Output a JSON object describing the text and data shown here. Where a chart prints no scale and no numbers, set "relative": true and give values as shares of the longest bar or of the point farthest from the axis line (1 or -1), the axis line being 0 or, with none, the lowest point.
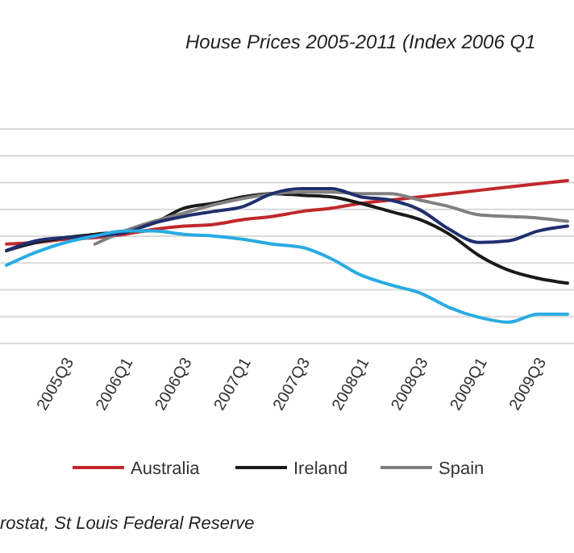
{
  "chart_data": {
    "type": "line",
    "title": "House Prices 2005-2011 (Index 2006 Q1",
    "relative": true,
    "grid": true,
    "legend": "bottom",
    "categories": [
      null,
      null,
      "2005Q3",
      null,
      "2006Q1",
      null,
      "2006Q3",
      null,
      "2007Q1",
      null,
      "2007Q3",
      null,
      "2008Q1",
      null,
      "2008Q3",
      null,
      "2009Q1",
      null,
      "2009Q3",
      null
    ],
    "series": [
      {
        "name": "Australia",
        "color": "#c0282d",
        "values": [
          0.61,
          0.62,
          0.64,
          0.65,
          0.67,
          0.7,
          0.72,
          0.73,
          0.76,
          0.78,
          0.81,
          0.83,
          0.86,
          0.88,
          0.9,
          0.92,
          0.94,
          0.96,
          0.98,
          1.0
        ]
      },
      {
        "name": "Ireland",
        "color": "#1a1a1a",
        "values": [
          0.57,
          0.62,
          0.65,
          0.67,
          0.69,
          0.74,
          0.83,
          0.86,
          0.9,
          0.92,
          0.91,
          0.9,
          0.86,
          0.81,
          0.76,
          0.67,
          0.54,
          0.45,
          0.4,
          0.37
        ]
      },
      {
        "name": "Spain",
        "color": "#808080",
        "values": [
          null,
          null,
          null,
          0.61,
          0.69,
          0.75,
          0.8,
          0.85,
          0.89,
          0.92,
          0.93,
          0.93,
          0.92,
          0.92,
          0.88,
          0.84,
          0.79,
          0.78,
          0.77,
          0.75
        ]
      },
      {
        "color": "#1f2f6e",
        "values": [
          0.57,
          0.63,
          0.65,
          0.66,
          0.68,
          0.74,
          0.78,
          0.81,
          0.84,
          0.92,
          0.95,
          0.95,
          0.9,
          0.88,
          0.82,
          0.7,
          0.62,
          0.63,
          0.69,
          0.72
        ]
      },
      {
        "color": "#29abe2",
        "values": [
          0.48,
          0.56,
          0.62,
          0.66,
          0.69,
          0.69,
          0.67,
          0.66,
          0.64,
          0.61,
          0.59,
          0.52,
          0.42,
          0.36,
          0.31,
          0.22,
          0.16,
          0.13,
          0.18,
          0.18
        ]
      }
    ],
    "annotations": [
      "rostat, St Louis Federal Reserve"
    ]
  }
}
